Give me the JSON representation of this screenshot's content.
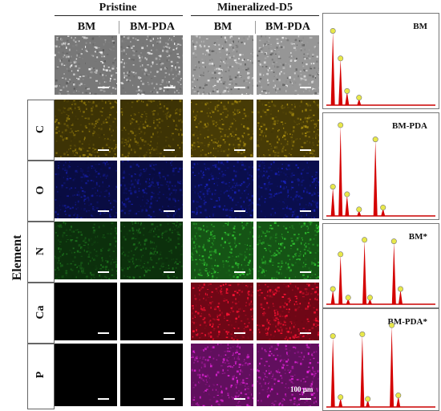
{
  "headers": {
    "group_left": "Pristine",
    "group_right": "Mineralized-D5",
    "columns": [
      "BM",
      "BM-PDA",
      "BM",
      "BM-PDA"
    ]
  },
  "side_label": "Element",
  "rows": [
    {
      "label": "",
      "color": "#9a9a9a"
    },
    {
      "label": "C",
      "color": "#b89a10"
    },
    {
      "label": "O",
      "color": "#1a24c8"
    },
    {
      "label": "N",
      "color": "#30c030"
    },
    {
      "label": "Ca",
      "color": "#ee1030"
    },
    {
      "label": "P",
      "color": "#d020c8"
    }
  ],
  "scale_label": "100 μm",
  "spectra": [
    {
      "label": "BM",
      "peaks": [
        {
          "x": 0.06,
          "h": 0.88
        },
        {
          "x": 0.13,
          "h": 0.55
        },
        {
          "x": 0.19,
          "h": 0.16
        },
        {
          "x": 0.3,
          "h": 0.08
        }
      ]
    },
    {
      "label": "BM-PDA",
      "peaks": [
        {
          "x": 0.06,
          "h": 0.3
        },
        {
          "x": 0.13,
          "h": 0.95
        },
        {
          "x": 0.19,
          "h": 0.22
        },
        {
          "x": 0.3,
          "h": 0.06
        },
        {
          "x": 0.45,
          "h": 0.8
        },
        {
          "x": 0.52,
          "h": 0.08
        }
      ]
    },
    {
      "label": "BM*",
      "peaks": [
        {
          "x": 0.06,
          "h": 0.2
        },
        {
          "x": 0.13,
          "h": 0.68
        },
        {
          "x": 0.2,
          "h": 0.08
        },
        {
          "x": 0.35,
          "h": 0.88
        },
        {
          "x": 0.4,
          "h": 0.08
        },
        {
          "x": 0.62,
          "h": 0.86
        },
        {
          "x": 0.68,
          "h": 0.2
        }
      ]
    },
    {
      "label": "BM-PDA*",
      "peaks": [
        {
          "x": 0.06,
          "h": 0.78
        },
        {
          "x": 0.13,
          "h": 0.1
        },
        {
          "x": 0.33,
          "h": 0.8
        },
        {
          "x": 0.38,
          "h": 0.08
        },
        {
          "x": 0.6,
          "h": 0.9
        },
        {
          "x": 0.66,
          "h": 0.12
        }
      ]
    }
  ]
}
